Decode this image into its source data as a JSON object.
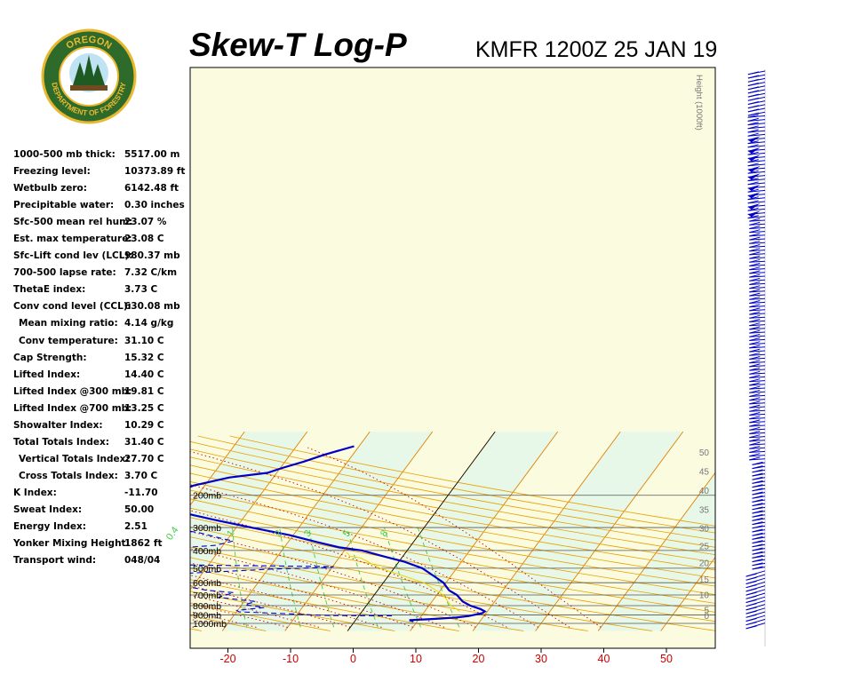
{
  "header": {
    "title": "Skew-T Log-P",
    "station_line": "KMFR 1200Z 25 JAN 19"
  },
  "logo": {
    "top_text": "OREGON",
    "bottom_text": "DEPARTMENT OF FORESTRY",
    "ring_color": "#2e6b2a",
    "accent_color": "#e8b830"
  },
  "stats": [
    {
      "label": "1000-500 mb thick:",
      "value": "5517.00 m",
      "indent": false
    },
    {
      "label": "Freezing level:",
      "value": "10373.89 ft",
      "indent": false
    },
    {
      "label": "Wetbulb zero:",
      "value": "6142.48 ft",
      "indent": false
    },
    {
      "label": "Precipitable water:",
      "value": "0.30 inches",
      "indent": false
    },
    {
      "label": "Sfc-500 mean rel hum:",
      "value": "23.07 %",
      "indent": false
    },
    {
      "label": "Est. max temperature:",
      "value": "23.08 C",
      "indent": false
    },
    {
      "label": "Sfc-Lift cond lev (LCL):",
      "value": "980.37 mb",
      "indent": false
    },
    {
      "label": "700-500 lapse rate:",
      "value": "7.32 C/km",
      "indent": false
    },
    {
      "label": "ThetaE index:",
      "value": "3.73 C",
      "indent": false
    },
    {
      "label": "Conv cond level (CCL):",
      "value": "630.08 mb",
      "indent": false
    },
    {
      "label": "Mean mixing ratio:",
      "value": "4.14 g/kg",
      "indent": true
    },
    {
      "label": "Conv temperature:",
      "value": "31.10 C",
      "indent": true
    },
    {
      "label": "Cap Strength:",
      "value": "15.32 C",
      "indent": false
    },
    {
      "label": "Lifted Index:",
      "value": "14.40 C",
      "indent": false
    },
    {
      "label": "Lifted Index @300 mb:",
      "value": "19.81 C",
      "indent": false
    },
    {
      "label": "Lifted Index @700 mb:",
      "value": "13.25 C",
      "indent": false
    },
    {
      "label": "Showalter Index:",
      "value": "10.29 C",
      "indent": false
    },
    {
      "label": "Total Totals Index:",
      "value": "31.40 C",
      "indent": false
    },
    {
      "label": "Vertical Totals Index:",
      "value": "27.70 C",
      "indent": true
    },
    {
      "label": "Cross Totals Index:",
      "value": "3.70 C",
      "indent": true
    },
    {
      "label": "K Index:",
      "value": "-11.70",
      "indent": false
    },
    {
      "label": "Sweat Index:",
      "value": "50.00",
      "indent": false
    },
    {
      "label": "Energy Index:",
      "value": "2.51",
      "indent": false
    },
    {
      "label": "Yonker Mixing Height:",
      "value": "1862 ft",
      "indent": false
    },
    {
      "label": "Transport wind:",
      "value": "048/04",
      "indent": false
    }
  ],
  "chart_data": {
    "type": "line",
    "title": "Skew-T Log-P",
    "subtitle": "KMFR 1200Z 25 JAN 19",
    "x_axis": {
      "unit": "C",
      "ticks": [
        -20,
        -10,
        0,
        10,
        20,
        30,
        40,
        50
      ],
      "range": [
        -27,
        58
      ]
    },
    "y_axis": {
      "scale": "log",
      "unit": "mb",
      "range": [
        1050,
        100
      ],
      "ticks": [
        1000,
        900,
        800,
        700,
        600,
        500,
        400,
        300,
        200
      ],
      "tick_labels": [
        "1000mb",
        "900mb",
        "800mb",
        "700mb",
        "600mb",
        "500mb",
        "400mb",
        "300mb",
        "200mb"
      ]
    },
    "height_axis": {
      "label": "Height (1000ft)",
      "ticks": [
        0,
        5,
        10,
        15,
        20,
        25,
        30,
        35,
        40,
        45,
        50
      ]
    },
    "mixing_ratio_labels": [
      "0.4",
      "1",
      "2",
      "3",
      "5",
      "8"
    ],
    "series": [
      {
        "role": "temperature",
        "color": "#0000c8",
        "points": [
          [
            975,
            9.4
          ],
          [
            960,
            8.6
          ],
          [
            950,
            11.4
          ],
          [
            940,
            13.4
          ],
          [
            930,
            15.6
          ],
          [
            912,
            17.6
          ],
          [
            880,
            19.4
          ],
          [
            860,
            19.6
          ],
          [
            835,
            18.6
          ],
          [
            800,
            16.6
          ],
          [
            760,
            14.9
          ],
          [
            700,
            13.2
          ],
          [
            660,
            11.4
          ],
          [
            600,
            9.6
          ],
          [
            560,
            7.7
          ],
          [
            500,
            4.5
          ],
          [
            460,
            0.8
          ],
          [
            430,
            -3.2
          ],
          [
            400,
            -7.2
          ],
          [
            385,
            -11.2
          ],
          [
            360,
            -15.4
          ],
          [
            330,
            -20.6
          ],
          [
            300,
            -27.6
          ],
          [
            270,
            -35.0
          ],
          [
            240,
            -42.7
          ],
          [
            215,
            -49.7
          ],
          [
            196,
            -55.6
          ],
          [
            191,
            -55.5
          ],
          [
            190,
            -47.0
          ],
          [
            188,
            -43.5
          ],
          [
            186,
            -42.8
          ],
          [
            177,
            -41.8
          ],
          [
            160,
            -37.0
          ],
          [
            151,
            -31.5
          ],
          [
            142,
            -29.7
          ],
          [
            131,
            -27.0
          ],
          [
            120,
            -24.5
          ],
          [
            108,
            -20.8
          ]
        ]
      },
      {
        "role": "dewpoint",
        "color": "#0000c8",
        "points": [
          [
            910,
            5.3
          ],
          [
            905,
            -5.2
          ],
          [
            885,
            -12.1
          ],
          [
            865,
            -19.6
          ],
          [
            850,
            -20.1
          ],
          [
            820,
            -16.1
          ],
          [
            790,
            -19.5
          ],
          [
            760,
            -18.2
          ],
          [
            720,
            -24.6
          ],
          [
            680,
            -22.7
          ],
          [
            660,
            -27.2
          ],
          [
            630,
            -30.8
          ],
          [
            600,
            -31.3
          ],
          [
            585,
            -38.5
          ],
          [
            565,
            -44.1
          ],
          [
            545,
            -38.3
          ],
          [
            520,
            -26.4
          ],
          [
            505,
            -19.4
          ],
          [
            495,
            -10.7
          ],
          [
            490,
            -9.8
          ],
          [
            480,
            -33.2
          ],
          [
            470,
            -39.5
          ],
          [
            455,
            -44.5
          ],
          [
            430,
            -34.4
          ],
          [
            420,
            -43.5
          ],
          [
            410,
            -46.5
          ],
          [
            400,
            -42.2
          ],
          [
            375,
            -31.2
          ],
          [
            355,
            -28.9
          ],
          [
            345,
            -30.9
          ],
          [
            320,
            -35.3
          ],
          [
            296,
            -42.3
          ],
          [
            282,
            -48.0
          ],
          [
            264,
            -48.9
          ],
          [
            241,
            -53.1
          ],
          [
            221,
            -56.7
          ],
          [
            208,
            -59.7
          ],
          [
            191,
            -65.0
          ],
          [
            186,
            -62.0
          ],
          [
            188,
            -56.6
          ],
          [
            183,
            -49.3
          ],
          [
            172,
            -55.6
          ],
          [
            160,
            -59.7
          ],
          [
            152,
            -60.9
          ],
          [
            138,
            -67.4
          ],
          [
            124,
            -67.0
          ],
          [
            110,
            -69.4
          ],
          [
            102,
            -68.5
          ]
        ]
      },
      {
        "role": "parcel",
        "color": "#e8d800",
        "points": [
          [
            860,
            15.6
          ],
          [
            800,
            13.5
          ],
          [
            700,
            11.0
          ],
          [
            600,
            6.5
          ],
          [
            500,
            -2.2
          ],
          [
            440,
            -6.5
          ],
          [
            430,
            -8.5
          ],
          [
            420,
            -8.9
          ],
          [
            410,
            -9.5
          ]
        ]
      }
    ],
    "wind_profile": {
      "description": "wind barbs plotted by height",
      "barb_color": "#0000c8"
    },
    "colors": {
      "dry_adiabat": "#e8a000",
      "isotherm": "#e08000",
      "moist_adiabat": "#cc0000",
      "mixing_ratio": "#44cc44",
      "band_green": "#e8f8e8",
      "band_yellow": "#fbfbe0"
    }
  }
}
